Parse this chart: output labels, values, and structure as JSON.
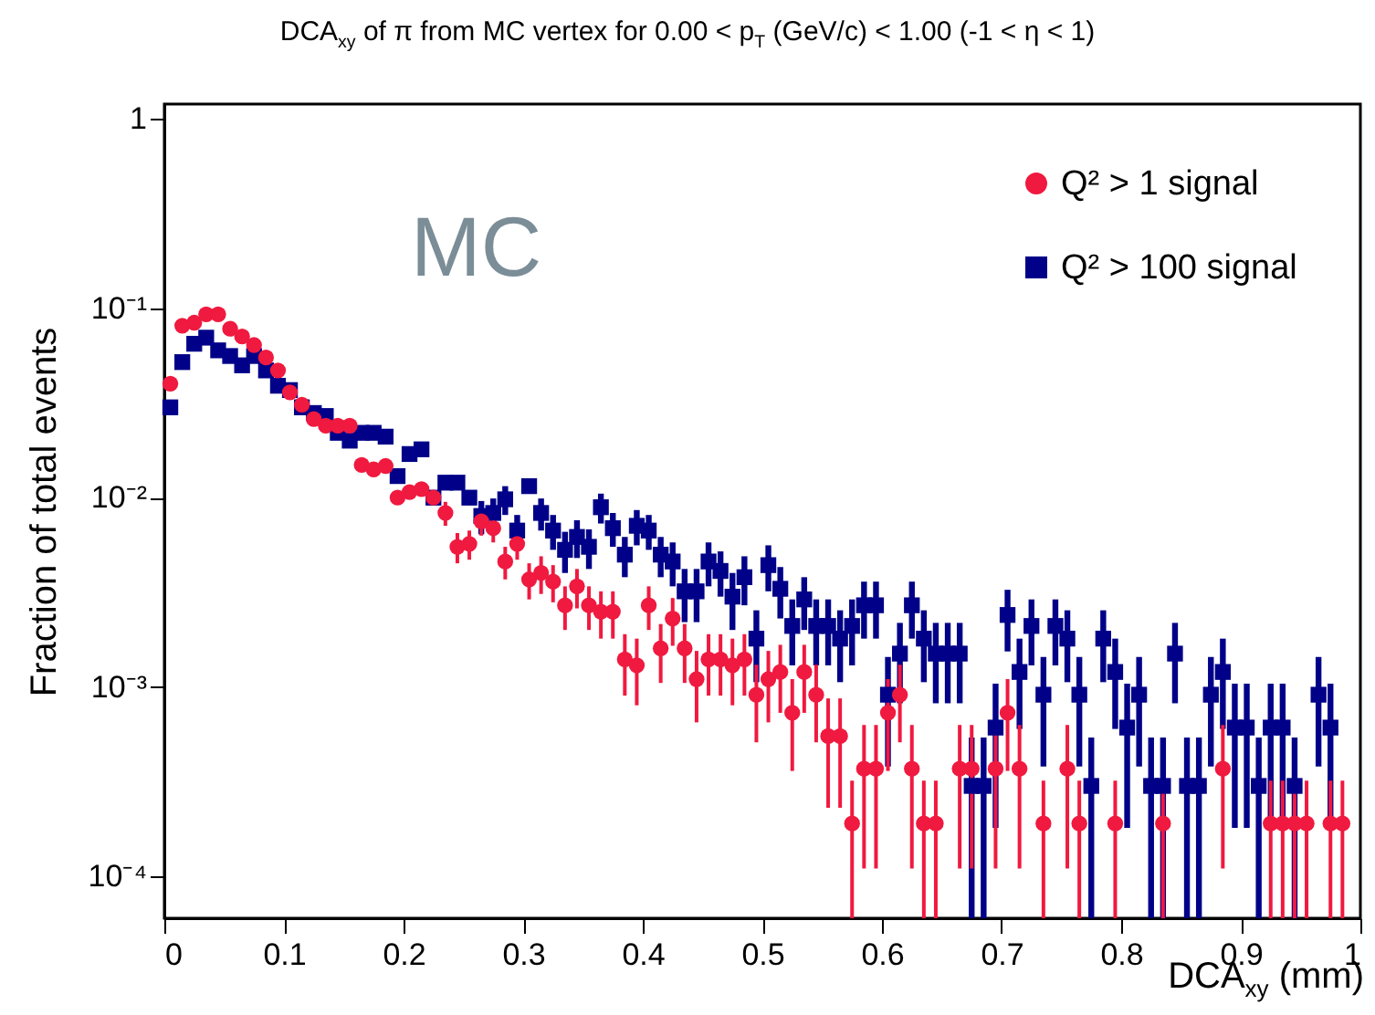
{
  "chart_data": {
    "type": "scatter",
    "title": "DCA$_{xy}$ of π from MC vertex for 0.00 < p$_{T}$ (GeV/c) < 1.00 (-1 < η < 1)",
    "xlabel": "DCA$_{xy}$ (mm)",
    "ylabel": "Fraction of total events",
    "annotations": [
      "MC"
    ],
    "log": "y",
    "legend": "top right",
    "xlim": [
      0,
      1
    ],
    "xticks": [
      0,
      0.1,
      0.2,
      0.3,
      0.4,
      0.5,
      0.6,
      0.7,
      0.8,
      0.9,
      1
    ],
    "ylim": [
      6e-05,
      1.2
    ],
    "yticks": [
      {
        "value": 0.0001,
        "label": "10⁻⁴"
      },
      {
        "value": 0.001,
        "label": "10⁻³"
      },
      {
        "value": 0.01,
        "label": "10⁻²"
      },
      {
        "value": 0.1,
        "label": "10⁻¹"
      },
      1
    ],
    "x": [
      0.005,
      0.015,
      0.025,
      0.035,
      0.045,
      0.055,
      0.065,
      0.075,
      0.085,
      0.095,
      0.105,
      0.115,
      0.125,
      0.135,
      0.145,
      0.155,
      0.165,
      0.175,
      0.185,
      0.195,
      0.205,
      0.215,
      0.225,
      0.235,
      0.245,
      0.255,
      0.265,
      0.275,
      0.285,
      0.295,
      0.305,
      0.315,
      0.325,
      0.335,
      0.345,
      0.355,
      0.365,
      0.375,
      0.385,
      0.395,
      0.405,
      0.415,
      0.425,
      0.435,
      0.445,
      0.455,
      0.465,
      0.475,
      0.485,
      0.495,
      0.505,
      0.515,
      0.525,
      0.535,
      0.545,
      0.555,
      0.565,
      0.575,
      0.585,
      0.595,
      0.605,
      0.615,
      0.625,
      0.635,
      0.645,
      0.655,
      0.665,
      0.675,
      0.685,
      0.695,
      0.705,
      0.715,
      0.725,
      0.735,
      0.745,
      0.755,
      0.765,
      0.775,
      0.785,
      0.795,
      0.805,
      0.815,
      0.825,
      0.835,
      0.845,
      0.855,
      0.865,
      0.875,
      0.885,
      0.895,
      0.905,
      0.915,
      0.925,
      0.935,
      0.945,
      0.955,
      0.965,
      0.975,
      0.985
    ],
    "series": [
      {
        "name": "Q² > 1 signal",
        "color": "#f0193f",
        "marker": "circle",
        "values": [
          0.04,
          0.081,
          0.084,
          0.093,
          0.093,
          0.078,
          0.071,
          0.064,
          0.055,
          0.047,
          0.036,
          0.031,
          0.026,
          0.024,
          0.024,
          0.024,
          0.0149,
          0.0141,
          0.0147,
          0.01,
          0.0107,
          0.0111,
          0.01,
          0.0083,
          0.0055,
          0.0057,
          0.0075,
          0.0069,
          0.0046,
          0.0057,
          0.0037,
          0.004,
          0.0036,
          0.0027,
          0.0034,
          0.0027,
          0.0025,
          0.0025,
          0.0014,
          0.0013,
          0.0027,
          0.0016,
          0.0023,
          0.0016,
          0.0011,
          0.0014,
          0.0014,
          0.0013,
          0.0014,
          0.00091,
          0.0011,
          0.0012,
          0.00073,
          0.0012,
          0.00091,
          0.00055,
          0.00055,
          0.00019,
          0.00037,
          0.00037,
          0.00073,
          0.00091,
          0.00037,
          0.00019,
          0.00019,
          null,
          0.00037,
          0.00037,
          null,
          0.00037,
          0.00073,
          0.00037,
          null,
          0.00019,
          null,
          0.00037,
          0.00019,
          null,
          null,
          0.00019,
          null,
          null,
          null,
          0.00019,
          null,
          null,
          null,
          null,
          0.00037,
          null,
          null,
          null,
          0.00019,
          0.00019,
          0.00019,
          0.00019,
          null,
          0.00019,
          0.00019
        ],
        "errors": [
          null,
          null,
          null,
          null,
          null,
          null,
          null,
          null,
          null,
          null,
          null,
          null,
          null,
          null,
          null,
          null,
          null,
          null,
          null,
          null,
          null,
          null,
          null,
          0.0012,
          0.001,
          0.001,
          0.0012,
          0.0011,
          0.0009,
          0.001,
          0.0008,
          0.0009,
          0.0008,
          0.0007,
          0.0008,
          0.0007,
          0.0007,
          0.0007,
          0.0005,
          0.0005,
          0.0007,
          0.00055,
          0.00065,
          0.00055,
          0.00045,
          0.0005,
          0.0005,
          0.0005,
          0.0005,
          0.0004,
          0.00045,
          0.00047,
          0.00037,
          0.00047,
          0.0004,
          0.00032,
          0.00032,
          0.00013,
          0.00026,
          0.00026,
          0.00037,
          0.0004,
          0.00026,
          0.00013,
          0.00013,
          null,
          0.00026,
          0.00026,
          null,
          0.00026,
          0.00037,
          0.00026,
          null,
          0.00013,
          null,
          0.00026,
          0.00013,
          null,
          null,
          0.00013,
          null,
          null,
          null,
          0.00013,
          null,
          null,
          null,
          null,
          0.00026,
          null,
          null,
          null,
          0.00013,
          0.00013,
          0.00013,
          0.00013,
          null,
          0.00013,
          0.00013
        ]
      },
      {
        "name": "Q² > 100 signal",
        "color": "#000088",
        "marker": "square",
        "values": [
          0.03,
          0.052,
          0.065,
          0.07,
          0.06,
          0.056,
          0.05,
          0.056,
          0.047,
          0.039,
          0.037,
          0.03,
          0.028,
          0.027,
          0.022,
          0.02,
          0.022,
          0.022,
          0.021,
          0.013,
          0.017,
          0.018,
          0.01,
          0.012,
          0.012,
          0.01,
          0.008,
          0.0083,
          0.0098,
          0.0067,
          0.0115,
          0.0083,
          0.0067,
          0.0053,
          0.0062,
          0.0055,
          0.0089,
          0.0069,
          0.005,
          0.0071,
          0.0067,
          0.005,
          0.0046,
          0.0032,
          0.0032,
          0.0046,
          0.0041,
          0.003,
          0.0038,
          0.0018,
          0.0044,
          0.0033,
          0.0021,
          0.0029,
          0.0021,
          0.0021,
          0.0018,
          0.0021,
          0.0027,
          0.0027,
          0.00091,
          0.0015,
          0.0027,
          0.0018,
          0.0015,
          0.0015,
          0.0015,
          0.0003,
          0.0003,
          0.00061,
          0.0024,
          0.0012,
          0.0021,
          0.00091,
          0.0021,
          0.0018,
          0.00091,
          0.0003,
          0.0018,
          0.0012,
          0.00061,
          0.00091,
          0.0003,
          0.0003,
          0.0015,
          0.0003,
          0.0003,
          0.00091,
          0.0012,
          0.00061,
          0.00061,
          0.0003,
          0.00061,
          0.00061,
          0.0003,
          null,
          0.00091,
          0.00061,
          null
        ],
        "errors": [
          null,
          null,
          null,
          null,
          null,
          null,
          null,
          null,
          null,
          null,
          null,
          null,
          null,
          null,
          null,
          null,
          null,
          null,
          null,
          null,
          null,
          null,
          null,
          null,
          null,
          null,
          0.0016,
          0.0016,
          0.0017,
          0.0014,
          null,
          0.0016,
          0.0014,
          0.0013,
          0.0014,
          0.0013,
          0.0016,
          0.0014,
          0.0012,
          0.0015,
          0.0014,
          0.0012,
          0.0012,
          0.001,
          0.001,
          0.0012,
          0.0011,
          0.001,
          0.0011,
          0.00074,
          0.0012,
          0.001,
          0.0008,
          0.0009,
          0.0008,
          0.0008,
          0.00074,
          0.0008,
          0.0009,
          0.0009,
          0.00053,
          0.00068,
          0.0009,
          0.00074,
          0.00068,
          0.00068,
          0.00068,
          0.00024,
          0.00024,
          0.00043,
          0.00086,
          0.0006,
          0.0008,
          0.00053,
          0.0008,
          0.00074,
          0.00053,
          0.00024,
          0.00074,
          0.0006,
          0.00043,
          0.00053,
          0.00024,
          0.00024,
          0.00068,
          0.00024,
          0.00024,
          0.00053,
          0.0006,
          0.00043,
          0.00043,
          0.00024,
          0.00043,
          0.00043,
          0.00024,
          null,
          0.00053,
          0.00043,
          null
        ]
      }
    ]
  }
}
